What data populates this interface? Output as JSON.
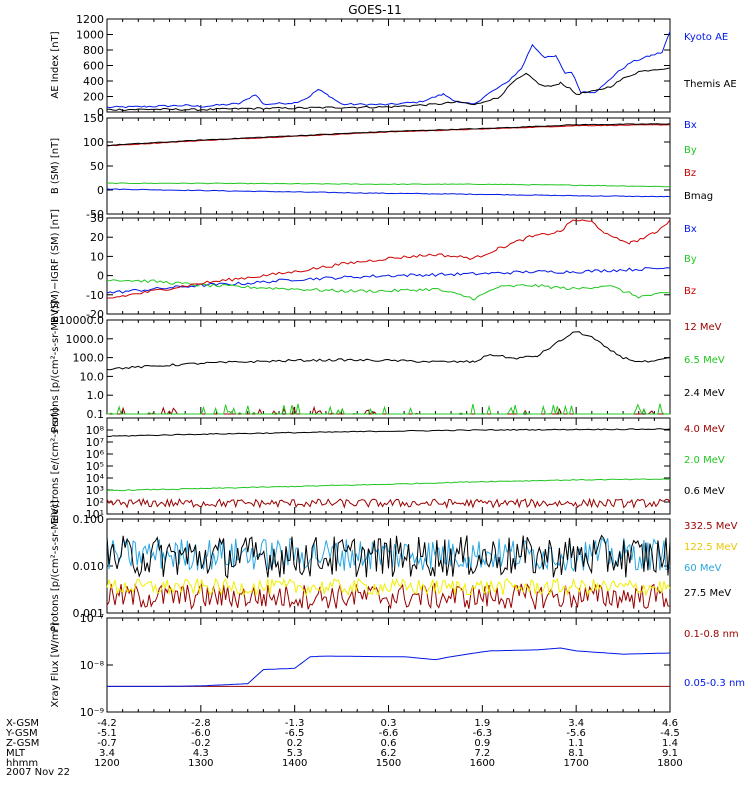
{
  "title": "GOES-11",
  "date_label": "2007 Nov 22",
  "colors": {
    "black": "#000000",
    "blue": "#0018e8",
    "red": "#cc0000",
    "green": "#22c722",
    "darkred": "#990000",
    "yellow": "#f0f000",
    "cyan": "#2aa6e0"
  },
  "x_axis": {
    "rows": [
      {
        "label": "X-GSM",
        "values": [
          "-4.2",
          "-2.8",
          "-1.3",
          "0.3",
          "1.9",
          "3.4",
          "4.6"
        ]
      },
      {
        "label": "Y-GSM",
        "values": [
          "-5.1",
          "-6.0",
          "-6.5",
          "-6.6",
          "-6.3",
          "-5.6",
          "-4.5"
        ]
      },
      {
        "label": "Z-GSM",
        "values": [
          "-0.7",
          "-0.2",
          "0.2",
          "0.6",
          "0.9",
          "1.1",
          "1.4"
        ]
      },
      {
        "label": "MLT",
        "values": [
          "3.4",
          "4.3",
          "5.3",
          "6.2",
          "7.2",
          "8.1",
          "9.1"
        ]
      },
      {
        "label": "hhmm",
        "values": [
          "1200",
          "1300",
          "1400",
          "1500",
          "1600",
          "1700",
          "1800"
        ]
      }
    ]
  },
  "chart_data": [
    {
      "type": "line",
      "title": "",
      "ylabel": "AE Index [nT]",
      "x": [
        "1200",
        "1800"
      ],
      "ylim": [
        0,
        1200
      ],
      "yscale": "linear",
      "ytick_labels": [
        "0",
        "200",
        "400",
        "600",
        "800",
        "1000",
        "1200"
      ],
      "series": [
        {
          "name": "Kyoto AE",
          "color": "blue",
          "values": [
            [
              1200,
              60
            ],
            [
              1225,
              70
            ],
            [
              1250,
              85
            ],
            [
              1300,
              70
            ],
            [
              1325,
              110
            ],
            [
              1335,
              230
            ],
            [
              1340,
              100
            ],
            [
              1400,
              120
            ],
            [
              1408,
              180
            ],
            [
              1415,
              290
            ],
            [
              1422,
              210
            ],
            [
              1430,
              100
            ],
            [
              1500,
              95
            ],
            [
              1520,
              130
            ],
            [
              1535,
              230
            ],
            [
              1545,
              120
            ],
            [
              1555,
              100
            ],
            [
              1600,
              180
            ],
            [
              1605,
              250
            ],
            [
              1615,
              370
            ],
            [
              1625,
              560
            ],
            [
              1632,
              870
            ],
            [
              1640,
              700
            ],
            [
              1647,
              720
            ],
            [
              1653,
              500
            ],
            [
              1657,
              520
            ],
            [
              1703,
              260
            ],
            [
              1712,
              260
            ],
            [
              1718,
              350
            ],
            [
              1725,
              490
            ],
            [
              1735,
              640
            ],
            [
              1748,
              730
            ],
            [
              1755,
              770
            ],
            [
              1800,
              1040
            ]
          ]
        },
        {
          "name": "Themis AE",
          "color": "black",
          "values": [
            [
              1200,
              30
            ],
            [
              1230,
              35
            ],
            [
              1300,
              30
            ],
            [
              1330,
              45
            ],
            [
              1400,
              50
            ],
            [
              1430,
              60
            ],
            [
              1500,
              65
            ],
            [
              1530,
              100
            ],
            [
              1545,
              130
            ],
            [
              1555,
              90
            ],
            [
              1603,
              150
            ],
            [
              1610,
              180
            ],
            [
              1620,
              390
            ],
            [
              1628,
              490
            ],
            [
              1638,
              340
            ],
            [
              1645,
              330
            ],
            [
              1650,
              380
            ],
            [
              1656,
              300
            ],
            [
              1700,
              230
            ],
            [
              1712,
              270
            ],
            [
              1722,
              330
            ],
            [
              1730,
              430
            ],
            [
              1740,
              520
            ],
            [
              1750,
              550
            ],
            [
              1800,
              570
            ]
          ]
        }
      ]
    },
    {
      "type": "line",
      "title": "",
      "ylabel": "B (SM) [nT]",
      "ylim": [
        -50,
        150
      ],
      "yscale": "linear",
      "ytick_labels": [
        "-50",
        "0",
        "50",
        "100",
        "150"
      ],
      "series": [
        {
          "name": "Bx",
          "color": "blue",
          "values": [
            [
              1200,
              2
            ],
            [
              1300,
              -1
            ],
            [
              1400,
              -4
            ],
            [
              1500,
              -7
            ],
            [
              1600,
              -9
            ],
            [
              1700,
              -12
            ],
            [
              1800,
              -14
            ]
          ]
        },
        {
          "name": "By",
          "color": "green",
          "values": [
            [
              1200,
              14
            ],
            [
              1300,
              14
            ],
            [
              1400,
              13
            ],
            [
              1500,
              12
            ],
            [
              1600,
              12
            ],
            [
              1700,
              10
            ],
            [
              1800,
              7
            ]
          ]
        },
        {
          "name": "Bz",
          "color": "red",
          "values": [
            [
              1200,
              92
            ],
            [
              1300,
              103
            ],
            [
              1400,
              112
            ],
            [
              1500,
              121
            ],
            [
              1600,
              127
            ],
            [
              1700,
              134
            ],
            [
              1800,
              136
            ]
          ]
        },
        {
          "name": "Bmag",
          "color": "black",
          "values": [
            [
              1200,
              93
            ],
            [
              1300,
              104
            ],
            [
              1400,
              113
            ],
            [
              1500,
              122
            ],
            [
              1600,
              128
            ],
            [
              1700,
              136
            ],
            [
              1800,
              138
            ]
          ]
        }
      ]
    },
    {
      "type": "line",
      "title": "",
      "ylabel": "B (SM)−IGRF (SM) [nT]",
      "ylim": [
        -20,
        30
      ],
      "yscale": "linear",
      "ytick_labels": [
        "-20",
        "-10",
        "0",
        "10",
        "20",
        "30"
      ],
      "series": [
        {
          "name": "Bx",
          "color": "blue",
          "values": [
            [
              1200,
              -9
            ],
            [
              1230,
              -7
            ],
            [
              1300,
              -5
            ],
            [
              1330,
              -4
            ],
            [
              1400,
              -2
            ],
            [
              1430,
              -1
            ],
            [
              1500,
              0
            ],
            [
              1530,
              0.5
            ],
            [
              1600,
              1
            ],
            [
              1630,
              2
            ],
            [
              1700,
              2
            ],
            [
              1730,
              3
            ],
            [
              1800,
              4
            ]
          ]
        },
        {
          "name": "By",
          "color": "green",
          "values": [
            [
              1200,
              -2
            ],
            [
              1230,
              -3
            ],
            [
              1300,
              -5
            ],
            [
              1330,
              -6
            ],
            [
              1400,
              -7
            ],
            [
              1430,
              -8
            ],
            [
              1500,
              -8
            ],
            [
              1530,
              -7
            ],
            [
              1555,
              -12
            ],
            [
              1610,
              -6
            ],
            [
              1630,
              -5
            ],
            [
              1700,
              -7
            ],
            [
              1720,
              -5
            ],
            [
              1740,
              -11
            ],
            [
              1800,
              -9
            ]
          ]
        },
        {
          "name": "Bz",
          "color": "red",
          "values": [
            [
              1200,
              -12
            ],
            [
              1230,
              -8
            ],
            [
              1300,
              -4
            ],
            [
              1330,
              -1
            ],
            [
              1400,
              2
            ],
            [
              1430,
              6
            ],
            [
              1500,
              9
            ],
            [
              1530,
              11
            ],
            [
              1555,
              9
            ],
            [
              1610,
              14
            ],
            [
              1630,
              20
            ],
            [
              1650,
              23
            ],
            [
              1658,
              29
            ],
            [
              1710,
              28
            ],
            [
              1722,
              20
            ],
            [
              1735,
              17
            ],
            [
              1750,
              22
            ],
            [
              1800,
              29
            ]
          ]
        }
      ]
    },
    {
      "type": "line",
      "title": "",
      "ylabel": "Protons [p/(cm²-s-sr-MeV)]",
      "ylim": [
        0.1,
        10000
      ],
      "yscale": "log",
      "ytick_labels": [
        "0.1",
        "1.0",
        "10.0",
        "100.0",
        "1000.0",
        "10000.0"
      ],
      "series": [
        {
          "name": "12 MeV",
          "color": "darkred",
          "values": []
        },
        {
          "name": "6.5 MeV",
          "color": "green",
          "values": []
        },
        {
          "name": "2.4 MeV",
          "color": "black",
          "values": [
            [
              1200,
              25
            ],
            [
              1230,
              35
            ],
            [
              1300,
              50
            ],
            [
              1330,
              60
            ],
            [
              1400,
              70
            ],
            [
              1430,
              75
            ],
            [
              1500,
              70
            ],
            [
              1530,
              60
            ],
            [
              1555,
              60
            ],
            [
              1605,
              150
            ],
            [
              1620,
              90
            ],
            [
              1635,
              120
            ],
            [
              1650,
              800
            ],
            [
              1700,
              2500
            ],
            [
              1710,
              1200
            ],
            [
              1720,
              300
            ],
            [
              1730,
              100
            ],
            [
              1740,
              60
            ],
            [
              1750,
              60
            ],
            [
              1800,
              100
            ]
          ]
        }
      ]
    },
    {
      "type": "line",
      "title": "",
      "ylabel": "Electrons [e/(cm²-s-sr)]",
      "ylim": [
        10,
        1000000000
      ],
      "yscale": "log",
      "ytick_labels": [
        "10¹",
        "10²",
        "10³",
        "10⁴",
        "10⁵",
        "10⁶",
        "10⁷",
        "10⁸"
      ],
      "series": [
        {
          "name": "4.0 MeV",
          "color": "darkred",
          "values": []
        },
        {
          "name": "2.0 MeV",
          "color": "green",
          "values": [
            [
              1200,
              900
            ],
            [
              1300,
              1300
            ],
            [
              1400,
              2000
            ],
            [
              1500,
              3000
            ],
            [
              1600,
              5000
            ],
            [
              1700,
              7000
            ],
            [
              1800,
              8000
            ]
          ]
        },
        {
          "name": "0.6 MeV",
          "color": "black",
          "values": [
            [
              1200,
              30000000
            ],
            [
              1300,
              45000000
            ],
            [
              1400,
              60000000
            ],
            [
              1500,
              80000000
            ],
            [
              1600,
              100000000
            ],
            [
              1700,
              110000000
            ],
            [
              1800,
              120000000
            ]
          ]
        }
      ]
    },
    {
      "type": "line",
      "title": "",
      "ylabel": "Protons [p/(cm²-s-sr-MeV)]",
      "ylim": [
        0.001,
        0.1
      ],
      "yscale": "log",
      "ytick_labels": [
        "0.001",
        "0.010",
        "0.100"
      ],
      "series": [
        {
          "name": "332.5 MeV",
          "color": "darkred",
          "values": []
        },
        {
          "name": "122.5 MeV",
          "color": "yellow",
          "values": []
        },
        {
          "name": "60 MeV",
          "color": "cyan",
          "values": []
        },
        {
          "name": "27.5 MeV",
          "color": "black",
          "values": []
        }
      ]
    },
    {
      "type": "line",
      "title": "",
      "ylabel": "Xray Flux [W/m²]",
      "ylim": [
        1e-09,
        1e-07
      ],
      "yscale": "log",
      "ytick_labels": [
        "10⁻⁹",
        "10⁻⁸",
        "10⁻⁷"
      ],
      "series": [
        {
          "name": "0.1-0.8 nm",
          "color": "darkred",
          "values": [
            [
              1200,
              3.5e-09
            ],
            [
              1800,
              3.5e-09
            ]
          ]
        },
        {
          "name": "0.05-0.3 nm",
          "color": "blue",
          "values": [
            [
              1200,
              3.5e-09
            ],
            [
              1235,
              3.5e-09
            ],
            [
              1300,
              3.6e-09
            ],
            [
              1330,
              4e-09
            ],
            [
              1340,
              8e-09
            ],
            [
              1400,
              8.5e-09
            ],
            [
              1410,
              1.5e-08
            ],
            [
              1420,
              1.55e-08
            ],
            [
              1500,
              1.5e-08
            ],
            [
              1510,
              1.5e-08
            ],
            [
              1530,
              1.3e-08
            ],
            [
              1540,
              1.5e-08
            ],
            [
              1600,
              1.9e-08
            ],
            [
              1605,
              2e-08
            ],
            [
              1635,
              2.1e-08
            ],
            [
              1650,
              2.3e-08
            ],
            [
              1700,
              2e-08
            ],
            [
              1730,
              1.7e-08
            ],
            [
              1800,
              1.8e-08
            ]
          ]
        }
      ]
    }
  ]
}
